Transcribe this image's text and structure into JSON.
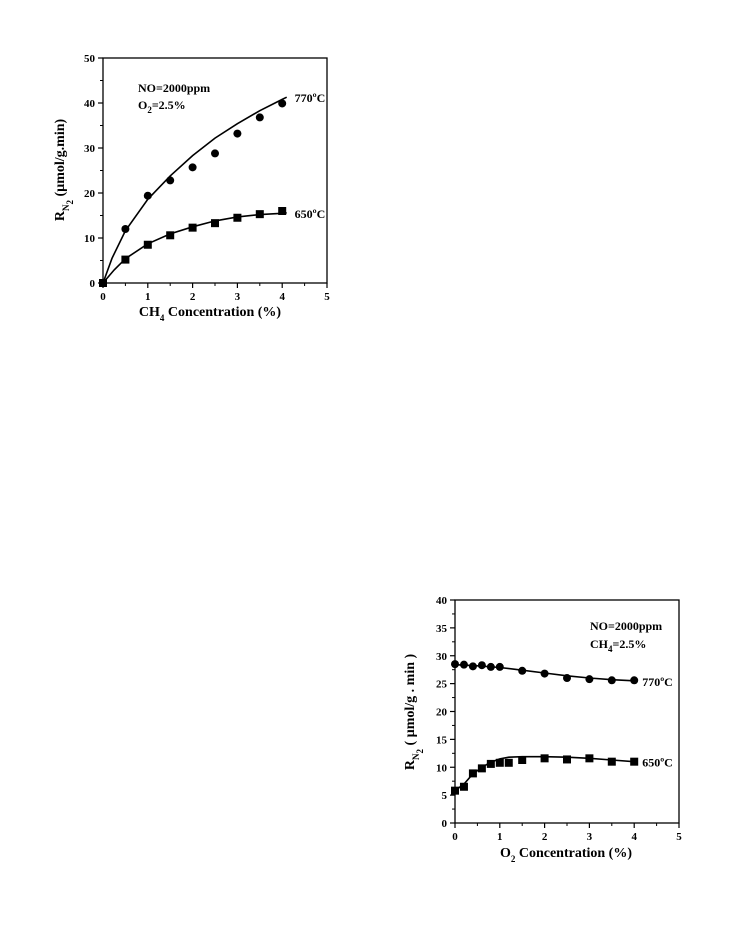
{
  "chart_data": [
    {
      "type": "scatter",
      "xlabel": {
        "main": "CH",
        "sub": "4",
        "rest": " Concentration (%)"
      },
      "ylabel": {
        "main": "R",
        "sub": "N",
        "subsub": "2",
        "rest": "  (µmol/g.min)"
      },
      "xlim": [
        0,
        5
      ],
      "ylim": [
        0,
        50
      ],
      "x_ticks": [
        "0",
        "1",
        "2",
        "3",
        "4",
        "5"
      ],
      "y_ticks": [
        "0",
        "10",
        "20",
        "30",
        "40",
        "50"
      ],
      "grid": false,
      "annotations": [
        {
          "text": "NO=2000ppm"
        },
        {
          "main": "O",
          "sub": "2",
          "rest": "=2.5%"
        }
      ],
      "series": [
        {
          "name": "770ºC",
          "marker": "circle",
          "points": [
            [
              0,
              0
            ],
            [
              0.5,
              12
            ],
            [
              1,
              19.4
            ],
            [
              1.5,
              22.8
            ],
            [
              2,
              25.7
            ],
            [
              2.5,
              28.8
            ],
            [
              3,
              33.2
            ],
            [
              3.5,
              36.8
            ],
            [
              4,
              39.9
            ]
          ],
          "fit": [
            [
              0,
              0
            ],
            [
              0.2,
              5.5
            ],
            [
              0.5,
              11.6
            ],
            [
              1,
              18.6
            ],
            [
              1.5,
              23.8
            ],
            [
              2,
              28.3
            ],
            [
              2.5,
              32.2
            ],
            [
              3,
              35.4
            ],
            [
              3.5,
              38.3
            ],
            [
              4,
              40.8
            ],
            [
              4.1,
              41.3
            ]
          ]
        },
        {
          "name": "650ºC",
          "marker": "square",
          "points": [
            [
              0,
              0
            ],
            [
              0.5,
              5.2
            ],
            [
              1,
              8.5
            ],
            [
              1.5,
              10.6
            ],
            [
              2,
              12.3
            ],
            [
              2.5,
              13.3
            ],
            [
              3,
              14.5
            ],
            [
              3.5,
              15.3
            ],
            [
              4,
              16
            ]
          ],
          "fit": [
            [
              0,
              0
            ],
            [
              0.25,
              2.9
            ],
            [
              0.5,
              5.4
            ],
            [
              1,
              8.7
            ],
            [
              1.5,
              10.9
            ],
            [
              2,
              12.5
            ],
            [
              2.5,
              13.8
            ],
            [
              3,
              14.7
            ],
            [
              3.5,
              15.2
            ],
            [
              4,
              15.5
            ],
            [
              4.1,
              15.6
            ]
          ]
        }
      ]
    },
    {
      "type": "scatter",
      "xlabel": {
        "main": "O",
        "sub": "2",
        "rest": " Concentration (%)"
      },
      "ylabel": {
        "main": "R",
        "sub": "N",
        "subsub": "2",
        "rest": " ( µmol/g . min )"
      },
      "xlim": [
        0,
        5
      ],
      "ylim": [
        0,
        40
      ],
      "x_ticks": [
        "0",
        "1",
        "2",
        "3",
        "4",
        "5"
      ],
      "y_ticks": [
        "0",
        "5",
        "10",
        "15",
        "20",
        "25",
        "30",
        "35",
        "40"
      ],
      "grid": false,
      "annotations": [
        {
          "text": "NO=2000ppm"
        },
        {
          "main": "CH",
          "sub": "4",
          "rest": "=2.5%"
        }
      ],
      "series": [
        {
          "name": "770ºC",
          "marker": "circle",
          "points": [
            [
              0,
              28.5
            ],
            [
              0.2,
              28.4
            ],
            [
              0.4,
              28.1
            ],
            [
              0.6,
              28.3
            ],
            [
              0.8,
              28
            ],
            [
              1,
              28
            ],
            [
              1.5,
              27.3
            ],
            [
              2,
              26.8
            ],
            [
              2.5,
              26
            ],
            [
              3,
              25.8
            ],
            [
              3.5,
              25.6
            ],
            [
              4,
              25.6
            ]
          ],
          "fit": [
            [
              0,
              28.4
            ],
            [
              0.5,
              28.2
            ],
            [
              1,
              27.9
            ],
            [
              1.5,
              27.4
            ],
            [
              2,
              26.9
            ],
            [
              2.5,
              26.4
            ],
            [
              3,
              26
            ],
            [
              3.5,
              25.7
            ],
            [
              4,
              25.5
            ]
          ]
        },
        {
          "name": "650ºC",
          "marker": "square",
          "points": [
            [
              0,
              5.8
            ],
            [
              0.2,
              6.5
            ],
            [
              0.4,
              8.9
            ],
            [
              0.6,
              9.8
            ],
            [
              0.8,
              10.6
            ],
            [
              1,
              10.8
            ],
            [
              1.2,
              10.8
            ],
            [
              1.5,
              11.3
            ],
            [
              2,
              11.6
            ],
            [
              2.5,
              11.4
            ],
            [
              3,
              11.6
            ],
            [
              3.5,
              11
            ],
            [
              4,
              11
            ]
          ],
          "fit": [
            [
              0,
              5.8
            ],
            [
              0.2,
              7
            ],
            [
              0.4,
              8.8
            ],
            [
              0.6,
              10
            ],
            [
              0.8,
              10.9
            ],
            [
              1,
              11.5
            ],
            [
              1.2,
              11.8
            ],
            [
              1.5,
              11.9
            ],
            [
              2,
              11.9
            ],
            [
              2.5,
              11.8
            ],
            [
              3,
              11.6
            ],
            [
              3.5,
              11.3
            ],
            [
              4,
              11
            ]
          ]
        }
      ]
    }
  ]
}
